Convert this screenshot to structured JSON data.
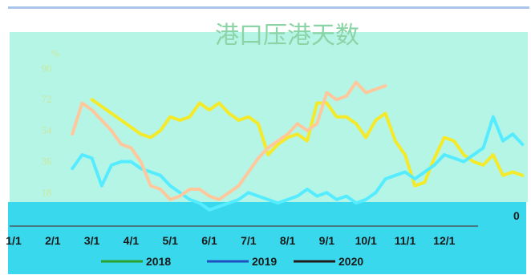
{
  "chart_data": {
    "type": "line",
    "title": "港口压港天数",
    "ylabel": "%",
    "ylim": [
      0,
      108
    ],
    "yticks": [
      "90",
      "72",
      "54",
      "36",
      "18"
    ],
    "zero_label": "0",
    "categories": [
      "1/1",
      "2/1",
      "3/1",
      "4/1",
      "5/1",
      "6/1",
      "7/1",
      "8/1",
      "9/1",
      "10/1",
      "11/1",
      "12/1"
    ],
    "series": [
      {
        "name": "2018",
        "color": "#2ca02c",
        "x": [
          3.0,
          3.25,
          3.5,
          3.75,
          4.0,
          4.25,
          4.5,
          4.75,
          5.0,
          5.25,
          5.5,
          5.75,
          6.0,
          6.25,
          6.5,
          6.75,
          7.0,
          7.25,
          7.5,
          7.75,
          8.0,
          8.25,
          8.5,
          8.75,
          9.0,
          9.25,
          9.5,
          9.75,
          10.0,
          10.25,
          10.5,
          10.75,
          11.0,
          11.25,
          11.5,
          11.75,
          12.0,
          12.25,
          12.5,
          12.75,
          13.0,
          13.25,
          13.5,
          13.75,
          14.0
        ],
        "values": [
          72,
          68,
          64,
          60,
          56,
          52,
          50,
          54,
          62,
          60,
          62,
          70,
          66,
          70,
          64,
          60,
          62,
          58,
          40,
          46,
          50,
          52,
          48,
          70,
          70,
          62,
          62,
          58,
          50,
          60,
          64,
          48,
          40,
          22,
          24,
          38,
          50,
          48,
          40,
          36,
          34,
          40,
          28,
          30,
          28
        ]
      },
      {
        "name": "2019",
        "color": "#1f4fbf",
        "x": [
          2.5,
          2.75,
          3.0,
          3.25,
          3.5,
          3.75,
          4.0,
          4.25,
          4.5,
          4.75,
          5.0,
          5.25,
          5.5,
          5.75,
          6.0,
          6.25,
          6.5,
          6.75,
          7.0,
          7.25,
          7.5,
          7.75,
          8.0,
          8.25,
          8.5,
          8.75,
          9.0,
          9.25,
          9.5,
          9.75,
          10.0,
          10.25,
          10.5,
          10.75,
          11.0,
          11.25,
          11.5,
          11.75,
          12.0,
          12.25,
          12.5,
          12.75,
          13.0,
          13.25,
          13.5,
          13.75,
          14.0
        ],
        "values": [
          32,
          40,
          38,
          22,
          34,
          36,
          36,
          32,
          30,
          28,
          22,
          18,
          14,
          12,
          8,
          10,
          12,
          14,
          18,
          16,
          14,
          12,
          14,
          16,
          20,
          16,
          18,
          14,
          16,
          12,
          14,
          18,
          26,
          28,
          30,
          26,
          30,
          34,
          40,
          38,
          36,
          40,
          44,
          62,
          48,
          52,
          46
        ]
      },
      {
        "name": "2020",
        "color": "#231a1a",
        "x": [
          2.5,
          2.75,
          3.0,
          3.25,
          3.5,
          3.75,
          4.0,
          4.25,
          4.5,
          4.75,
          5.0,
          5.25,
          5.5,
          5.75,
          6.0,
          6.25,
          6.5,
          6.75,
          7.0,
          7.25,
          7.5,
          7.75,
          8.0,
          8.25,
          8.5,
          8.75,
          9.0,
          9.25,
          9.5,
          9.75,
          10.0,
          10.25,
          10.5
        ],
        "values": [
          52,
          70,
          66,
          60,
          54,
          46,
          44,
          36,
          22,
          20,
          14,
          16,
          20,
          20,
          16,
          14,
          18,
          22,
          30,
          38,
          44,
          48,
          52,
          58,
          54,
          58,
          76,
          72,
          74,
          82,
          76,
          78,
          80
        ]
      }
    ],
    "legend_position": "bottom"
  }
}
